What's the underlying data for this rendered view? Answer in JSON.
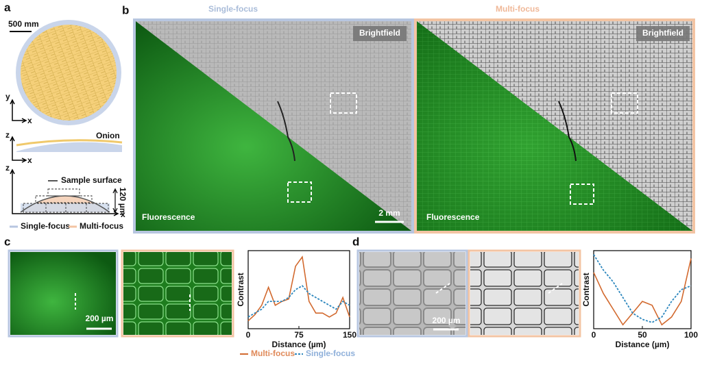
{
  "panel_labels": [
    "a",
    "b",
    "c",
    "d"
  ],
  "panel_a": {
    "scale_bar": "500 mm",
    "axes_top": [
      "y",
      "x"
    ],
    "axes_mid": [
      "z",
      "x"
    ],
    "axes_bottom": [
      "z",
      "x"
    ],
    "onion_label": "Onion",
    "surface_label": "Sample surface",
    "depth_label": "120 µm",
    "legend": [
      "Single-focus",
      "Multi-focus"
    ]
  },
  "panel_b": {
    "titles": [
      "Single-focus",
      "Multi-focus"
    ],
    "brightfield": [
      "Brightfield",
      "Brightfield"
    ],
    "fluorescence": [
      "Fluorescence",
      "Fluorescence"
    ],
    "scale_bar": "2 mm"
  },
  "panel_c": {
    "scale_bar": "200 µm"
  },
  "panel_d": {
    "scale_bar": "200 µm"
  },
  "chart_data": [
    {
      "type": "line",
      "x_label": "Distance (µm)",
      "y_label": "Contrast",
      "x": [
        0,
        10,
        20,
        30,
        40,
        50,
        60,
        70,
        80,
        90,
        100,
        110,
        120,
        130,
        140,
        150
      ],
      "xlim": [
        0,
        150
      ],
      "xticks": [
        0,
        75,
        150
      ],
      "ylim": [
        0,
        1
      ],
      "series": [
        {
          "name": "Multi-focus",
          "color": "#d2692e",
          "linestyle": "solid",
          "values": [
            0.1,
            0.18,
            0.3,
            0.53,
            0.3,
            0.35,
            0.38,
            0.8,
            0.92,
            0.35,
            0.2,
            0.2,
            0.15,
            0.2,
            0.4,
            0.15
          ]
        },
        {
          "name": "Single-focus",
          "color": "#2b86bd",
          "linestyle": "dotted",
          "values": [
            0.15,
            0.2,
            0.25,
            0.35,
            0.35,
            0.35,
            0.4,
            0.5,
            0.55,
            0.45,
            0.4,
            0.35,
            0.3,
            0.25,
            0.35,
            0.3
          ]
        }
      ]
    },
    {
      "type": "line",
      "x_label": "Distance (µm)",
      "y_label": "Contrast",
      "x": [
        0,
        10,
        20,
        30,
        40,
        50,
        60,
        70,
        80,
        90,
        100
      ],
      "xlim": [
        0,
        100
      ],
      "xticks": [
        0,
        50,
        100
      ],
      "ylim": [
        0,
        1
      ],
      "series": [
        {
          "color": "#d2692e",
          "linestyle": "solid",
          "values": [
            0.72,
            0.45,
            0.25,
            0.05,
            0.2,
            0.35,
            0.3,
            0.05,
            0.15,
            0.35,
            0.9
          ]
        },
        {
          "color": "#2b86bd",
          "linestyle": "dotted",
          "values": [
            0.95,
            0.75,
            0.6,
            0.4,
            0.2,
            0.12,
            0.08,
            0.15,
            0.35,
            0.5,
            0.55
          ]
        }
      ]
    }
  ]
}
